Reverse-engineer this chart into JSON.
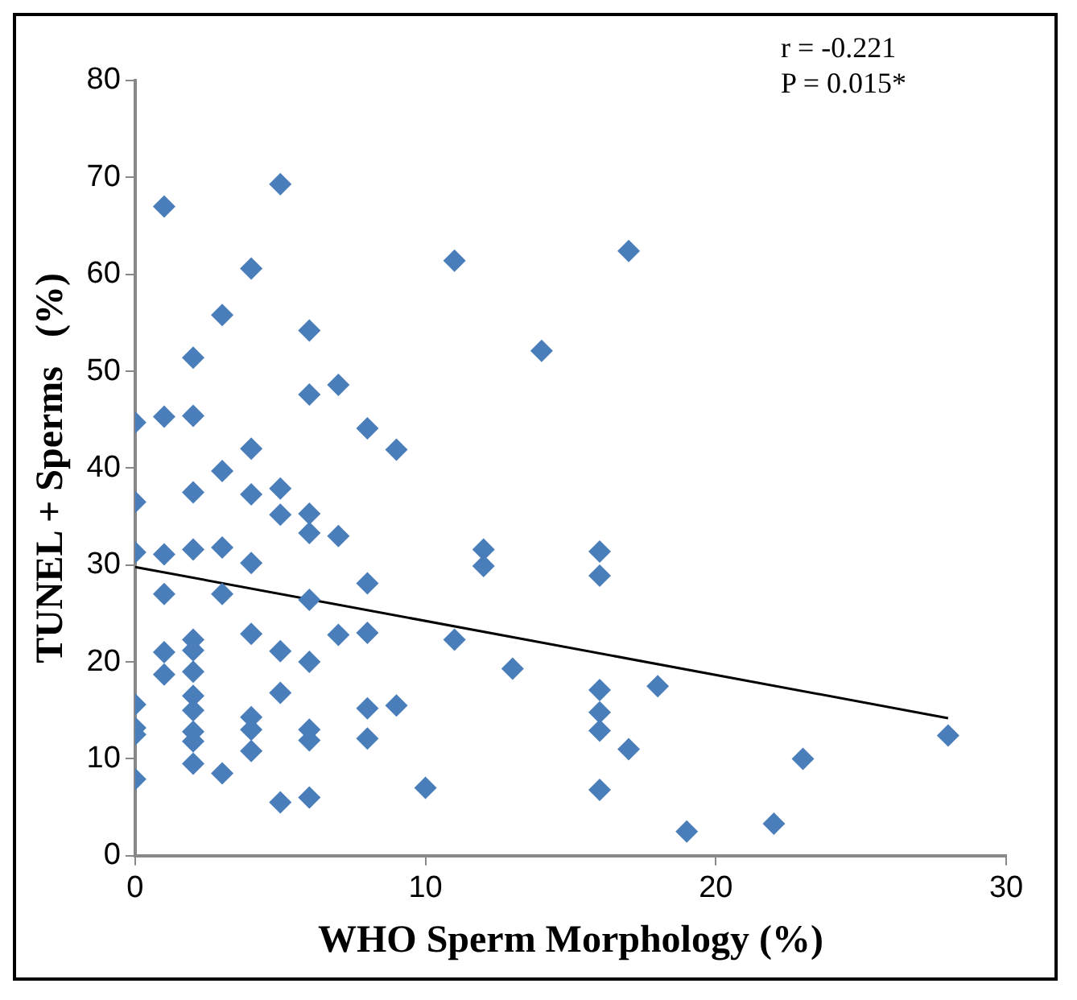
{
  "chart_data": {
    "type": "scatter",
    "xlabel": "WHO Sperm Morphology (%)",
    "ylabel": "TUNEL + Sperms   (%)",
    "annotations": [
      "r = -0.221",
      "P = 0.015*"
    ],
    "xlim": [
      0,
      30
    ],
    "xticks": [
      0,
      10,
      20,
      30
    ],
    "ylim": [
      0,
      80
    ],
    "yticks": [
      0,
      10,
      20,
      30,
      40,
      50,
      60,
      70,
      80
    ],
    "grid": false,
    "legend": false,
    "marker": "diamond",
    "series": [
      {
        "type": "scatter",
        "color": "#4a7ebb",
        "x": [
          0,
          0,
          0,
          0,
          0,
          0,
          0,
          1,
          1,
          1,
          1,
          1,
          1,
          2,
          2,
          2,
          2,
          2,
          2,
          2,
          2,
          2,
          2,
          2,
          2,
          3,
          3,
          3,
          3,
          3,
          4,
          4,
          4,
          4,
          4,
          4,
          4,
          4,
          5,
          5,
          5,
          5,
          5,
          5,
          6,
          6,
          6,
          6,
          6,
          6,
          6,
          6,
          6,
          7,
          7,
          7,
          8,
          8,
          8,
          8,
          8,
          9,
          9,
          10,
          11,
          11,
          12,
          12,
          13,
          14,
          16,
          16,
          16,
          16,
          16,
          16,
          17,
          17,
          18,
          19,
          22,
          23,
          28
        ],
        "values": [
          44.7,
          36.5,
          31.3,
          15.6,
          13.2,
          12.5,
          7.9,
          67,
          45.3,
          31.1,
          27,
          21,
          18.7,
          51.4,
          45.4,
          37.5,
          31.6,
          22.3,
          21.2,
          19,
          16.5,
          15,
          12.8,
          11.8,
          9.5,
          55.8,
          39.7,
          31.8,
          27,
          8.5,
          60.6,
          42,
          37.3,
          30.2,
          22.9,
          14.3,
          13,
          10.8,
          69.3,
          37.9,
          35.2,
          21.1,
          16.8,
          5.5,
          54.2,
          47.6,
          35.3,
          33.3,
          26.4,
          20,
          13,
          11.9,
          6,
          48.6,
          33,
          22.8,
          44.1,
          28.1,
          23,
          15.2,
          12.1,
          41.9,
          15.5,
          7,
          61.4,
          22.3,
          31.6,
          29.9,
          19.3,
          52.1,
          31.4,
          28.9,
          17.1,
          14.8,
          12.9,
          6.8,
          62.4,
          11,
          17.5,
          2.5,
          3.3,
          10,
          12.4
        ]
      },
      {
        "type": "line",
        "color": "#000000",
        "marker": "none",
        "x": [
          0,
          28
        ],
        "values": [
          29.8,
          14.2
        ]
      }
    ]
  }
}
